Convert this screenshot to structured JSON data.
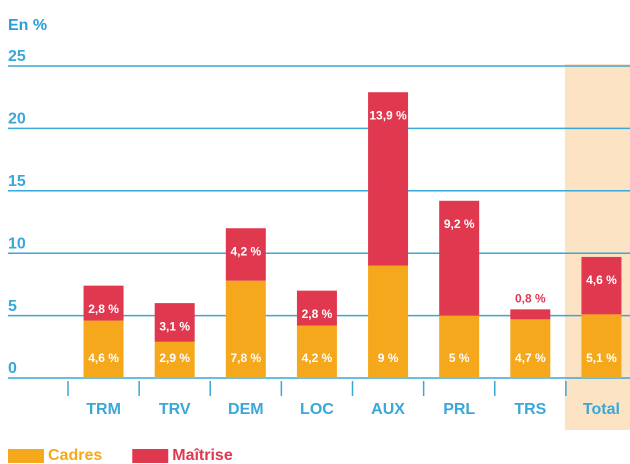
{
  "chart_data": {
    "type": "stacked_bar",
    "y_label": "En %",
    "categories": [
      "TRM",
      "TRV",
      "DEM",
      "LOC",
      "AUX",
      "PRL",
      "TRS",
      "Total"
    ],
    "series": [
      {
        "name": "Cadres",
        "color": "#f5a81c",
        "values": [
          4.6,
          2.9,
          7.8,
          4.2,
          9,
          5,
          4.7,
          5.1
        ],
        "value_labels": [
          "4,6 %",
          "2,9 %",
          "7,8 %",
          "4,2 %",
          "9 %",
          "5 %",
          "4,7 %",
          "5,1 %"
        ]
      },
      {
        "name": "Maîtrise",
        "color": "#e0384f",
        "values": [
          2.8,
          3.1,
          4.2,
          2.8,
          13.9,
          9.2,
          0.8,
          4.6
        ],
        "value_labels": [
          "2,8 %",
          "3,1 %",
          "4,2 %",
          "2,8 %",
          "13,9 %",
          "9,2 %",
          "0,8 %",
          "4,6 %"
        ]
      }
    ],
    "ylim": [
      0,
      25
    ],
    "yticks": [
      0,
      5,
      10,
      15,
      20,
      25
    ],
    "grid": true,
    "grid_color": "#3aa7d9",
    "highlight": "Total",
    "highlight_color": "#fbe3c4",
    "legend": "bottom-left"
  }
}
